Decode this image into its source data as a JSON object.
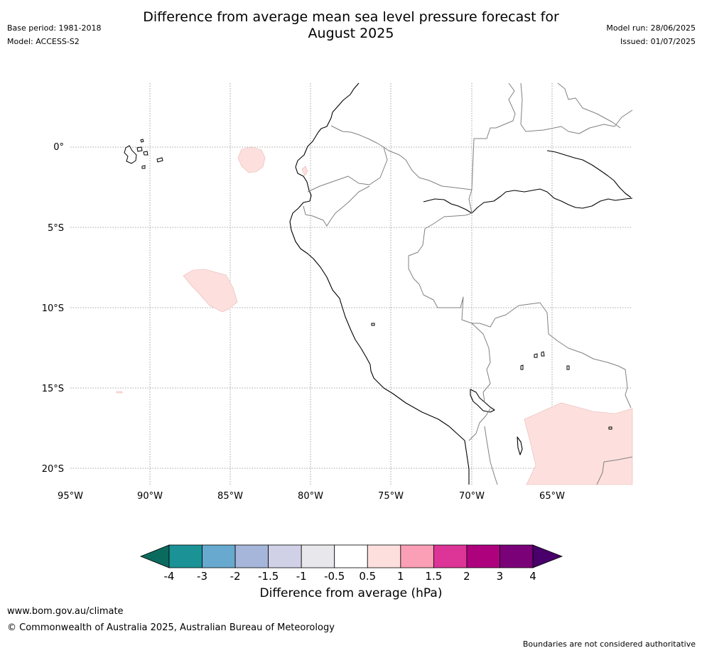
{
  "header": {
    "title_line1": "Difference from average mean sea level pressure forecast for",
    "title_line2": "August 2025",
    "base_period": "Base period: 1981-2018",
    "model": "Model: ACCESS-S2",
    "model_run": "Model run: 28/06/2025",
    "issued": "Issued: 01/07/2025"
  },
  "map": {
    "lat_labels": [
      "0°",
      "5°S",
      "10°S",
      "15°S",
      "20°S"
    ],
    "lon_labels": [
      "95°W",
      "90°W",
      "85°W",
      "80°W",
      "75°W",
      "70°W",
      "65°W"
    ],
    "anomaly_fill_color": "#fde0dd",
    "coastline_color": "#000000",
    "border_color": "#808080",
    "grid_style": "dotted"
  },
  "colorbar": {
    "ticks": [
      "-4",
      "-3",
      "-2",
      "-1.5",
      "-1",
      "-0.5",
      "0.5",
      "1",
      "1.5",
      "2",
      "3",
      "4"
    ],
    "colors": [
      "#0b6a5e",
      "#1a9296",
      "#67a9cf",
      "#a6b6da",
      "#d0d1e6",
      "#e8e8ec",
      "#ffffff",
      "#fde0dd",
      "#fa9fb5",
      "#dd3497",
      "#ae017e",
      "#7a0177",
      "#49006a"
    ],
    "label": "Difference from average (hPa)"
  },
  "footer": {
    "url": "www.bom.gov.au/climate",
    "copyright": "© Commonwealth of Australia 2025, Australian Bureau of Meteorology",
    "disclaimer": "Boundaries are not considered authoritative"
  }
}
